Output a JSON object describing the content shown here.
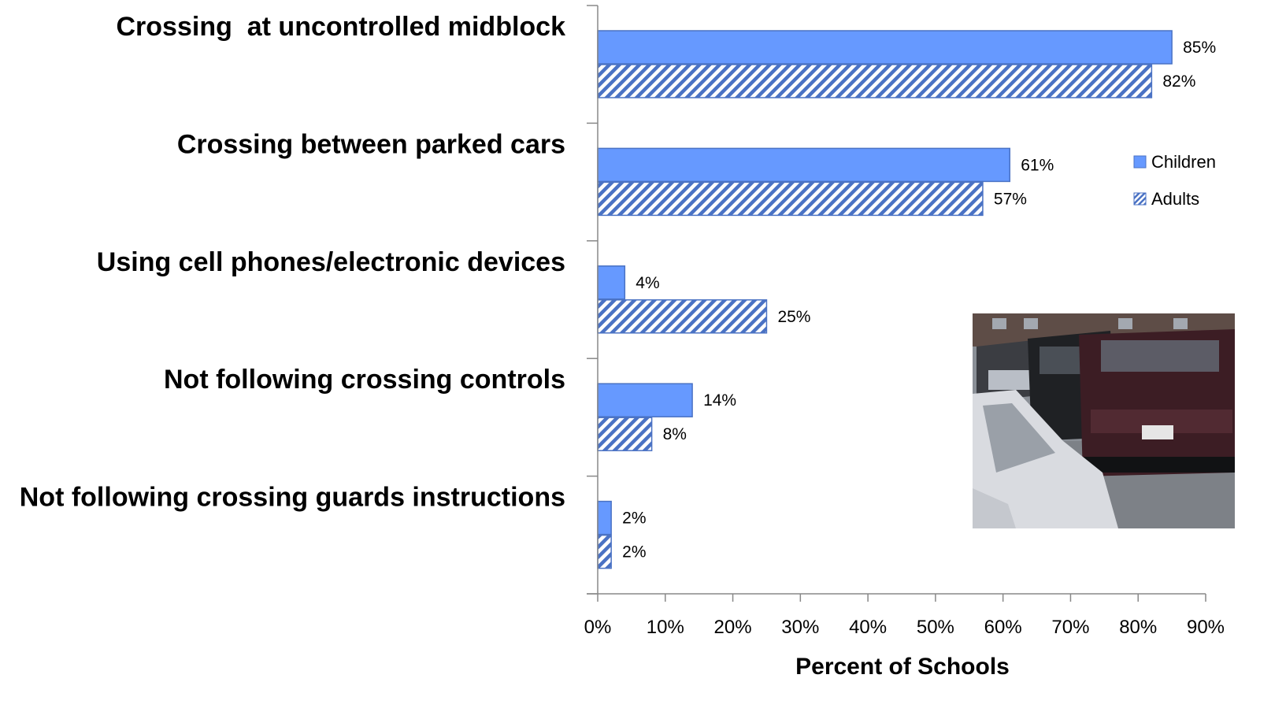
{
  "chart_data": {
    "type": "bar",
    "orientation": "horizontal",
    "categories": [
      "Crossing  at uncontrolled midblock",
      "Crossing between parked cars",
      "Using cell phones/electronic devices",
      "Not following crossing controls",
      "Not following crossing guards instructions"
    ],
    "series": [
      {
        "name": "Children",
        "values": [
          85,
          61,
          4,
          14,
          2
        ],
        "color": "#6699ff",
        "fill": "solid"
      },
      {
        "name": "Adults",
        "values": [
          82,
          57,
          25,
          8,
          2
        ],
        "color": "#4a72c4",
        "fill": "hatched"
      }
    ],
    "data_labels": [
      [
        "85%",
        "61%",
        "4%",
        "14%",
        "2%"
      ],
      [
        "82%",
        "57%",
        "25%",
        "8%",
        "2%"
      ]
    ],
    "xlabel": "Percent of Schools",
    "ylabel": "",
    "xlim": [
      0,
      90
    ],
    "x_ticks": [
      0,
      10,
      20,
      30,
      40,
      50,
      60,
      70,
      80,
      90
    ],
    "x_tick_labels": [
      "0%",
      "10%",
      "20%",
      "30%",
      "40%",
      "50%",
      "60%",
      "70%",
      "80%",
      "90%"
    ],
    "grid": false,
    "legend_position": "right",
    "inset_photo": "parked-cars-photo"
  }
}
